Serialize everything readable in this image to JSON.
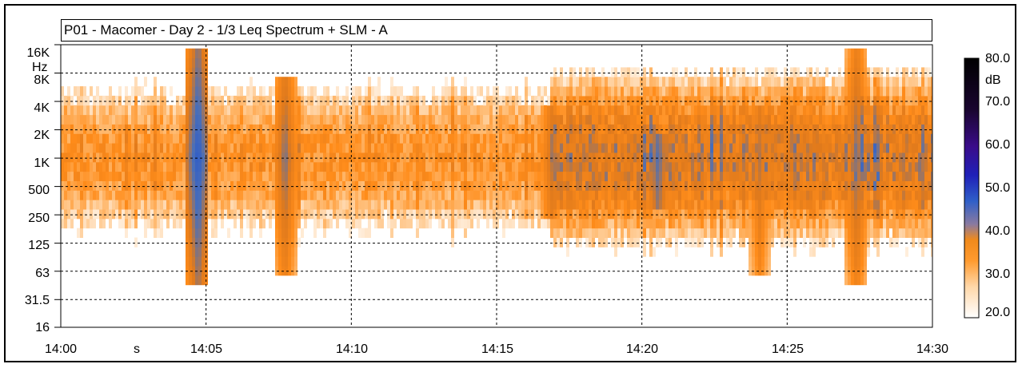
{
  "chart_data": {
    "type": "heatmap",
    "title": "P01 - Macomer - Day 2 - 1/3 Leq Spectrum + SLM - A",
    "y_unit": "Hz",
    "x_unit": "s",
    "colorbar_unit": "dB",
    "y_ticks": [
      "16K",
      "8K",
      "4K",
      "2K",
      "1K",
      "500",
      "250",
      "125",
      "63",
      "31.5",
      "16"
    ],
    "x_ticks": [
      "14:00",
      "14:05",
      "14:10",
      "14:15",
      "14:20",
      "14:25",
      "14:30"
    ],
    "colorbar_ticks": [
      "80.0",
      "70.0",
      "60.0",
      "50.0",
      "40.0",
      "30.0",
      "20.0"
    ],
    "y_range_hz": [
      16,
      16000
    ],
    "x_range": [
      "14:00",
      "14:30"
    ],
    "z_range_db": [
      20,
      80
    ],
    "grid": true,
    "colormap": [
      "#ffffff",
      "#ffbf7a",
      "#ff8c1a",
      "#e07a1c",
      "#4a6fb8",
      "#2050d0",
      "#2a1aa0",
      "#3a0a6a",
      "#000000"
    ],
    "events": [
      {
        "time": "14:04:40",
        "low_hz": 50,
        "high_hz": 16000,
        "peak_db": 55
      },
      {
        "time": "14:07:40",
        "low_hz": 63,
        "high_hz": 8000,
        "peak_db": 48
      },
      {
        "time": "14:27:20",
        "low_hz": 50,
        "high_hz": 16000,
        "peak_db": 48
      },
      {
        "time": "14:16:50",
        "low_hz": 250,
        "high_hz": 4000,
        "peak_db": 45
      },
      {
        "time": "14:20:30",
        "low_hz": 300,
        "high_hz": 2000,
        "peak_db": 50
      },
      {
        "time": "14:24:00",
        "low_hz": 63,
        "high_hz": 4000,
        "peak_db": 45
      }
    ]
  }
}
